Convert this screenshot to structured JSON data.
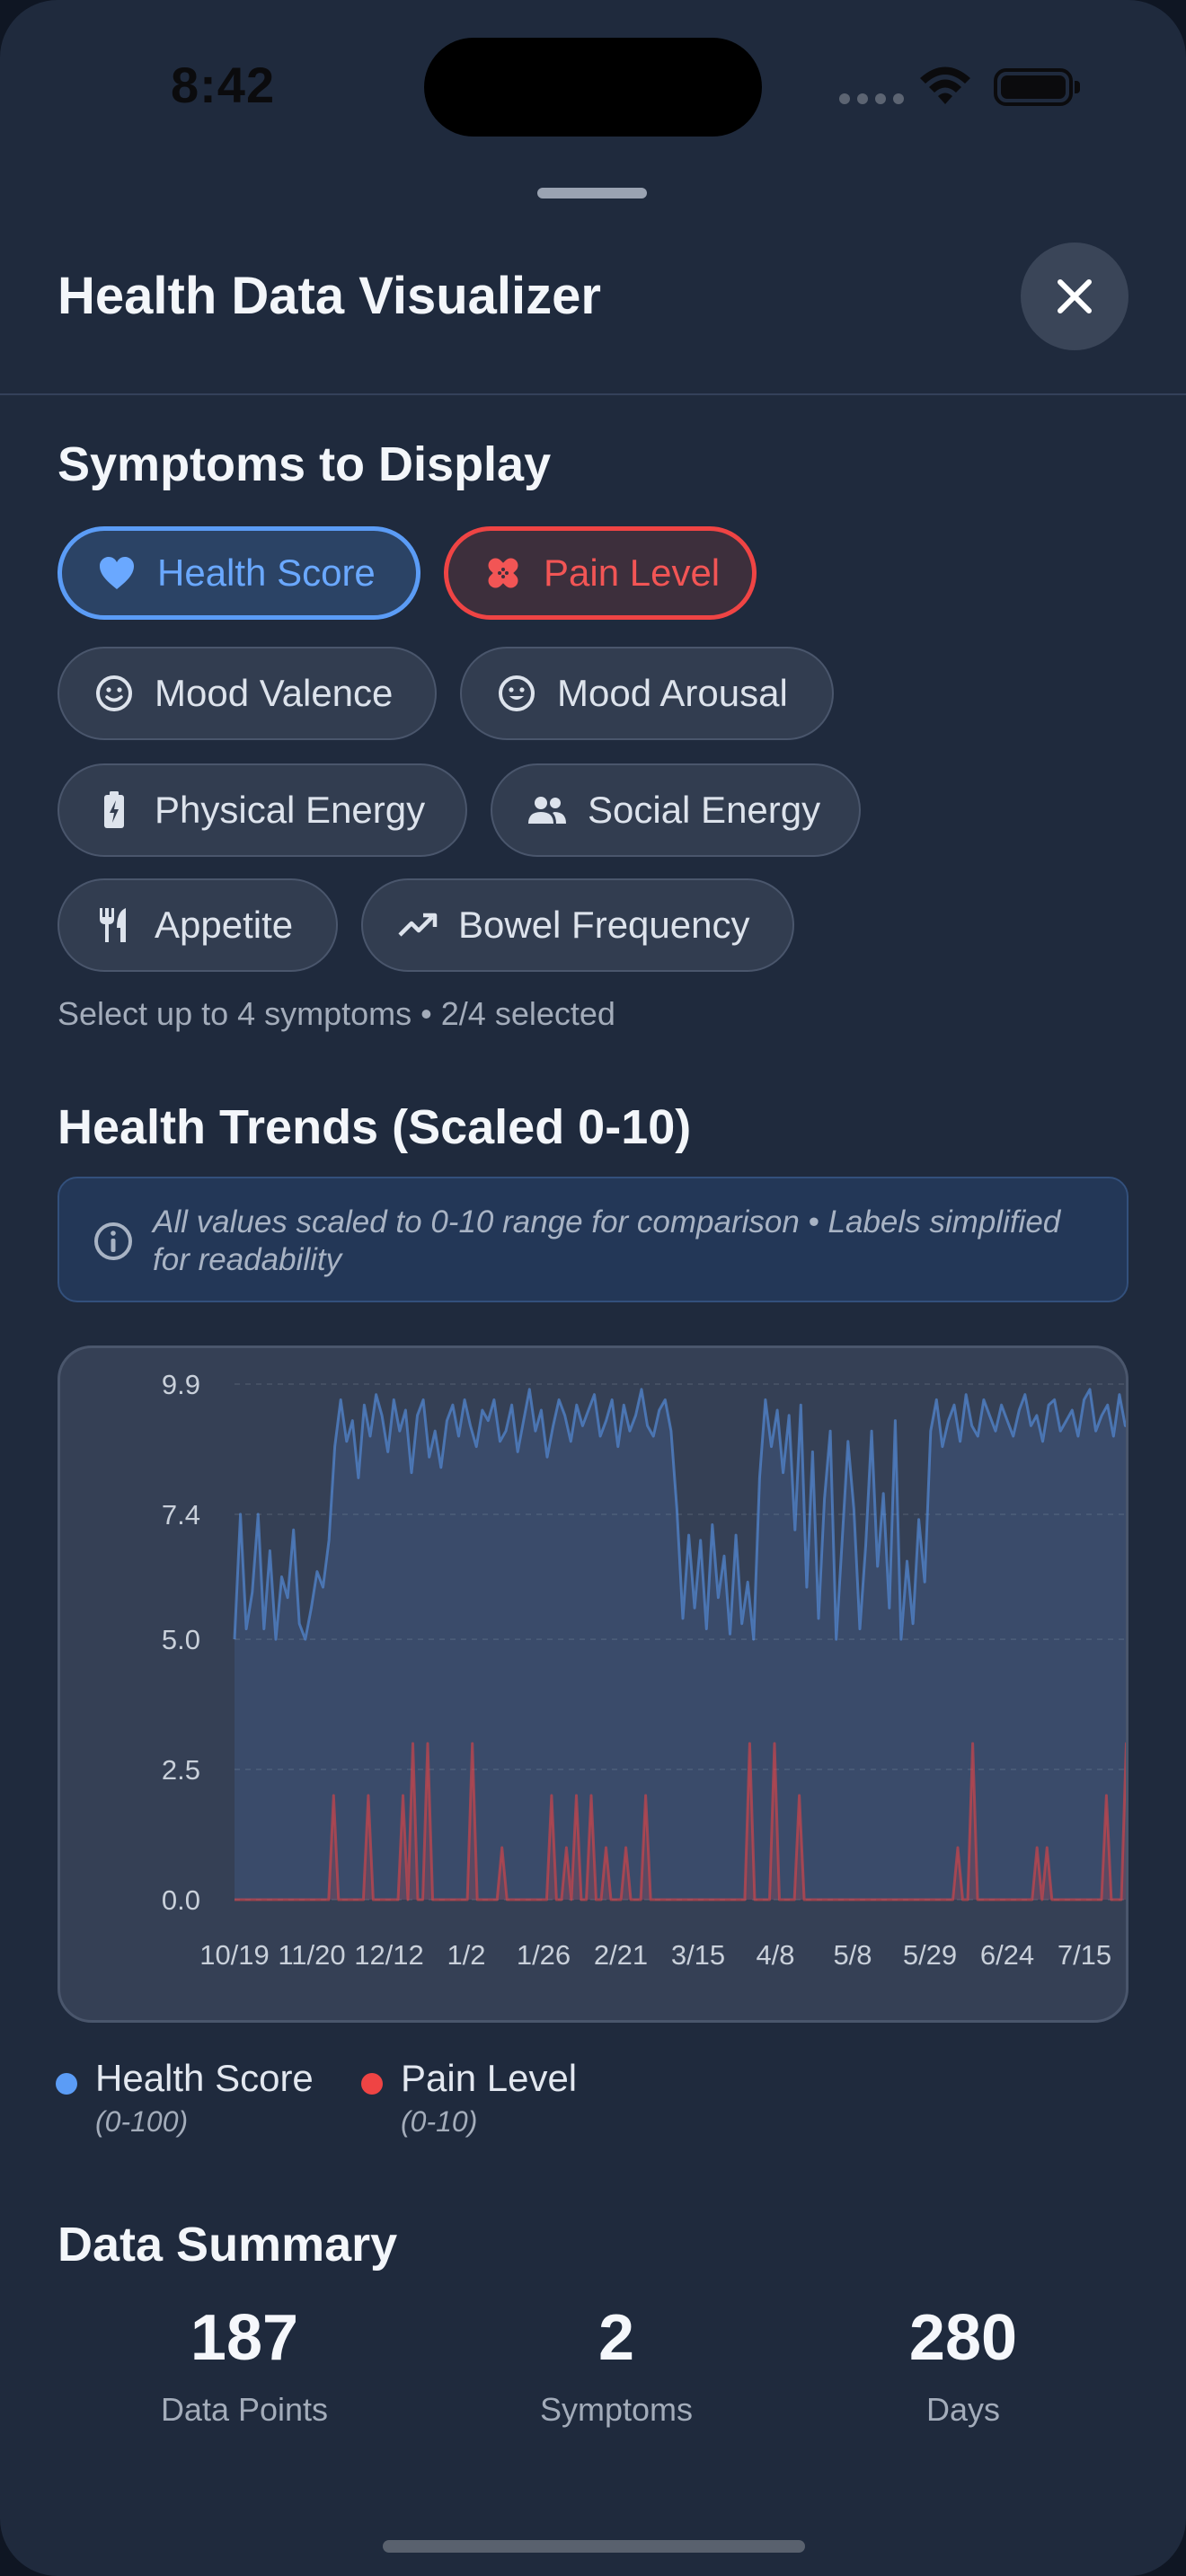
{
  "status_bar": {
    "time": "8:42"
  },
  "header": {
    "title": "Health Data Visualizer"
  },
  "symptoms": {
    "title": "Symptoms to Display",
    "chips": [
      {
        "label": "Health Score",
        "icon": "heart-icon",
        "selected": true,
        "color": "#5b9cf6"
      },
      {
        "label": "Pain Level",
        "icon": "bandage-icon",
        "selected": true,
        "color": "#ef4444"
      },
      {
        "label": "Mood Valence",
        "icon": "smiley-icon",
        "selected": false
      },
      {
        "label": "Mood Arousal",
        "icon": "smiley-icon",
        "selected": false
      },
      {
        "label": "Physical Energy",
        "icon": "battery-charging-icon",
        "selected": false
      },
      {
        "label": "Social Energy",
        "icon": "people-icon",
        "selected": false
      },
      {
        "label": "Appetite",
        "icon": "utensils-icon",
        "selected": false
      },
      {
        "label": "Bowel Frequency",
        "icon": "trend-up-icon",
        "selected": false
      }
    ],
    "helper": "Select up to 4 symptoms • 2/4 selected"
  },
  "trends": {
    "title": "Health Trends (Scaled 0-10)",
    "info": "All values scaled to 0-10 range for comparison • Labels simplified for readability"
  },
  "chart_data": {
    "type": "line",
    "ylim": [
      0,
      9.9
    ],
    "y_ticks": [
      "9.9",
      "7.4",
      "5.0",
      "2.5",
      "0.0"
    ],
    "x_ticks": [
      "10/19",
      "11/20",
      "12/12",
      "1/2",
      "1/26",
      "2/21",
      "3/15",
      "4/8",
      "5/8",
      "5/29",
      "6/24",
      "7/15",
      "7/"
    ],
    "series": [
      {
        "name": "Health Score",
        "range": "(0-100)",
        "color": "#5b9cf6",
        "values": [
          5.0,
          7.4,
          5.2,
          5.9,
          7.4,
          5.2,
          6.7,
          5.0,
          6.2,
          5.8,
          7.1,
          5.3,
          5.0,
          5.6,
          6.3,
          6.0,
          6.9,
          8.7,
          9.6,
          8.8,
          9.2,
          8.1,
          9.5,
          8.9,
          9.7,
          9.3,
          8.6,
          9.6,
          9.0,
          9.4,
          8.2,
          9.3,
          9.6,
          8.5,
          9.0,
          8.3,
          9.2,
          9.5,
          8.9,
          9.6,
          9.1,
          8.7,
          9.4,
          9.2,
          9.6,
          8.8,
          9.0,
          9.5,
          8.6,
          9.2,
          9.8,
          9.0,
          9.4,
          8.5,
          9.1,
          9.6,
          9.3,
          8.8,
          9.5,
          9.1,
          9.4,
          9.7,
          8.9,
          9.2,
          9.6,
          8.7,
          9.5,
          9.0,
          9.3,
          9.8,
          9.1,
          8.9,
          9.4,
          9.6,
          9.0,
          7.5,
          5.4,
          7.0,
          5.6,
          6.9,
          5.2,
          7.2,
          5.8,
          6.6,
          5.1,
          7.0,
          5.3,
          6.1,
          5.0,
          8.1,
          9.6,
          8.7,
          9.4,
          8.2,
          9.3,
          7.1,
          9.5,
          6.0,
          8.6,
          5.4,
          7.7,
          9.0,
          5.0,
          6.9,
          8.8,
          7.5,
          5.2,
          6.8,
          9.0,
          6.4,
          7.8,
          5.6,
          9.2,
          5.0,
          6.5,
          5.3,
          7.3,
          6.1,
          9.0,
          9.6,
          8.7,
          9.2,
          9.5,
          8.8,
          9.7,
          9.1,
          8.9,
          9.6,
          9.3,
          9.0,
          9.5,
          9.2,
          8.9,
          9.4,
          9.7,
          9.1,
          9.3,
          8.8,
          9.5,
          9.6,
          9.0,
          9.2,
          9.4,
          8.9,
          9.6,
          9.8,
          9.0,
          9.3,
          9.5,
          8.9,
          9.7,
          9.1,
          9.4
        ]
      },
      {
        "name": "Pain Level",
        "range": "(0-10)",
        "color": "#ef4444",
        "values": [
          0,
          0,
          0,
          0,
          0,
          0,
          0,
          0,
          0,
          0,
          0,
          0,
          0,
          0,
          0,
          0,
          0,
          0,
          0,
          0,
          2.0,
          0,
          0,
          0,
          0,
          0,
          0,
          2.0,
          0,
          0,
          0,
          0,
          0,
          0,
          2.0,
          0,
          3.0,
          0,
          0,
          3.0,
          0,
          0,
          0,
          0,
          0,
          0,
          0,
          0,
          3.0,
          0,
          0,
          0,
          0,
          0,
          1.0,
          0,
          0,
          0,
          0,
          0,
          0,
          0,
          0,
          0,
          2.0,
          0,
          0,
          1.0,
          0,
          2.0,
          0,
          0,
          2.0,
          0,
          0,
          1.0,
          0,
          0,
          0,
          1.0,
          0,
          0,
          0,
          2.0,
          0,
          0,
          0,
          0,
          0,
          0,
          0,
          0,
          0,
          0,
          0,
          0,
          0,
          0,
          0,
          0,
          0,
          0,
          0,
          0,
          3.0,
          0,
          0,
          0,
          0,
          3.0,
          0,
          0,
          0,
          0,
          2.0,
          0,
          0,
          0,
          0,
          0,
          0,
          0,
          0,
          0,
          0,
          0,
          0,
          0,
          0,
          0,
          0,
          0,
          0,
          0,
          0,
          0,
          0,
          0,
          0,
          0,
          0,
          0,
          0,
          0,
          0,
          0,
          1.0,
          0,
          0,
          3.0,
          0,
          0,
          0,
          0,
          0,
          0,
          0,
          0,
          0,
          0,
          0,
          0,
          1.0,
          0,
          1.0,
          0,
          0,
          0,
          0,
          0,
          0,
          0,
          0,
          0,
          0,
          0,
          2.0,
          0,
          0,
          0,
          3.0,
          0
        ]
      }
    ]
  },
  "summary": {
    "title": "Data Summary",
    "data_points": {
      "value": "187",
      "label": "Data Points"
    },
    "symptoms": {
      "value": "2",
      "label": "Symptoms"
    },
    "days": {
      "value": "280",
      "label": "Days"
    }
  }
}
